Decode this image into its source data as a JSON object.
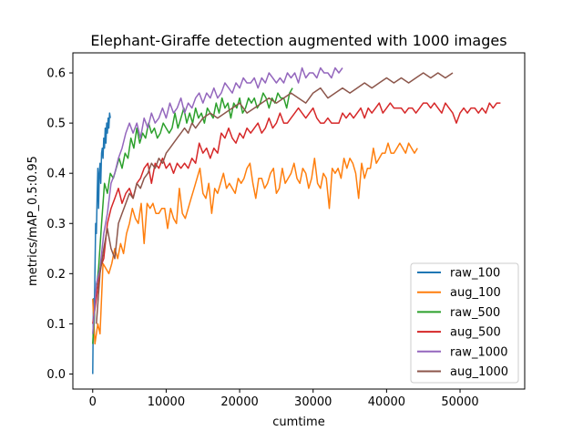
{
  "chart_data": {
    "type": "line",
    "title": "Elephant-Giraffe detection augmented with 1000 images",
    "xlabel": "cumtime",
    "ylabel": "metrics/mAP_0.5:0.95",
    "xlim": [
      -2700,
      58800
    ],
    "ylim": [
      -0.03,
      0.64
    ],
    "xticks": [
      0,
      10000,
      20000,
      30000,
      40000,
      50000
    ],
    "xtick_labels": [
      "0",
      "10000",
      "20000",
      "30000",
      "40000",
      "50000"
    ],
    "yticks": [
      0.0,
      0.1,
      0.2,
      0.3,
      0.4,
      0.5,
      0.6
    ],
    "ytick_labels": [
      "0.0",
      "0.1",
      "0.2",
      "0.3",
      "0.4",
      "0.5",
      "0.6"
    ],
    "grid": false,
    "legend_position": "lower-right",
    "series": [
      {
        "name": "raw_100",
        "color": "#1f77b4",
        "x": [
          0,
          100,
          200,
          300,
          400,
          500,
          600,
          700,
          800,
          900,
          1000,
          1100,
          1200,
          1300,
          1400,
          1500,
          1600,
          1700,
          1800,
          1900,
          2000,
          2100,
          2200,
          2300,
          2400
        ],
        "y": [
          0.0,
          0.15,
          0.1,
          0.2,
          0.3,
          0.28,
          0.35,
          0.41,
          0.33,
          0.4,
          0.42,
          0.38,
          0.44,
          0.45,
          0.43,
          0.47,
          0.45,
          0.49,
          0.46,
          0.5,
          0.48,
          0.51,
          0.49,
          0.52,
          0.51
        ]
      },
      {
        "name": "aug_100",
        "color": "#ff7f0e",
        "x": [
          0,
          300,
          700,
          1000,
          1400,
          1800,
          2200,
          2600,
          3000,
          3400,
          3800,
          4200,
          4600,
          5000,
          5400,
          5800,
          6200,
          6600,
          7000,
          7400,
          7800,
          8200,
          8600,
          9000,
          9400,
          9800,
          10200,
          10600,
          11000,
          11400,
          11800,
          12200,
          12600,
          13000,
          13400,
          13800,
          14200,
          14600,
          15000,
          15400,
          15800,
          16200,
          16600,
          17000,
          17400,
          17800,
          18200,
          18600,
          19000,
          19400,
          19800,
          20200,
          20600,
          21000,
          21400,
          21800,
          22200,
          22600,
          23000,
          23400,
          23800,
          24200,
          24600,
          25000,
          25400,
          25800,
          26200,
          26600,
          27000,
          27400,
          27800,
          28200,
          28600,
          29000,
          29400,
          29800,
          30200,
          30600,
          31000,
          31400,
          31800,
          32200,
          32600,
          33000,
          33400,
          33800,
          34200,
          34600,
          35000,
          35400,
          35800,
          36200,
          36600,
          37000,
          37400,
          37800,
          38200,
          38600,
          39000,
          39400,
          39800,
          40200,
          40600,
          41000,
          41400,
          41800,
          42200,
          42600,
          43000,
          43400,
          43800,
          44200
        ],
        "y": [
          0.15,
          0.06,
          0.1,
          0.08,
          0.22,
          0.21,
          0.2,
          0.22,
          0.25,
          0.23,
          0.26,
          0.24,
          0.28,
          0.3,
          0.33,
          0.31,
          0.3,
          0.34,
          0.26,
          0.34,
          0.33,
          0.34,
          0.32,
          0.32,
          0.33,
          0.33,
          0.29,
          0.33,
          0.31,
          0.3,
          0.37,
          0.32,
          0.31,
          0.33,
          0.35,
          0.37,
          0.39,
          0.41,
          0.36,
          0.35,
          0.38,
          0.32,
          0.37,
          0.36,
          0.38,
          0.4,
          0.37,
          0.38,
          0.37,
          0.36,
          0.39,
          0.38,
          0.39,
          0.41,
          0.42,
          0.38,
          0.35,
          0.39,
          0.39,
          0.37,
          0.38,
          0.4,
          0.41,
          0.36,
          0.37,
          0.41,
          0.38,
          0.39,
          0.4,
          0.42,
          0.39,
          0.38,
          0.41,
          0.4,
          0.37,
          0.39,
          0.43,
          0.38,
          0.37,
          0.4,
          0.39,
          0.33,
          0.41,
          0.4,
          0.41,
          0.39,
          0.43,
          0.41,
          0.43,
          0.42,
          0.4,
          0.35,
          0.42,
          0.39,
          0.41,
          0.41,
          0.45,
          0.42,
          0.43,
          0.44,
          0.44,
          0.46,
          0.44,
          0.44,
          0.45,
          0.46,
          0.45,
          0.44,
          0.46,
          0.45,
          0.44,
          0.45
        ]
      },
      {
        "name": "raw_500",
        "color": "#2ca02c",
        "x": [
          0,
          400,
          800,
          1200,
          1600,
          2000,
          2400,
          2800,
          3200,
          3600,
          4000,
          4400,
          4800,
          5200,
          5600,
          6000,
          6400,
          6800,
          7200,
          7600,
          8000,
          8400,
          8800,
          9200,
          9600,
          10000,
          10400,
          10800,
          11200,
          11600,
          12000,
          12400,
          12800,
          13200,
          13600,
          14000,
          14400,
          14800,
          15200,
          15600,
          16000,
          16400,
          16800,
          17200,
          17600,
          18000,
          18400,
          18800,
          19200,
          19600,
          20000,
          20400,
          20800,
          21200,
          21600,
          22000,
          22400,
          22800,
          23200,
          23600,
          24000,
          24400,
          24800,
          25200,
          25600,
          26000,
          26400,
          26800,
          27200
        ],
        "y": [
          0.06,
          0.16,
          0.21,
          0.3,
          0.38,
          0.36,
          0.4,
          0.39,
          0.41,
          0.43,
          0.41,
          0.44,
          0.43,
          0.47,
          0.45,
          0.49,
          0.46,
          0.48,
          0.47,
          0.5,
          0.48,
          0.49,
          0.47,
          0.48,
          0.5,
          0.49,
          0.48,
          0.49,
          0.52,
          0.49,
          0.51,
          0.53,
          0.5,
          0.52,
          0.5,
          0.53,
          0.51,
          0.52,
          0.5,
          0.53,
          0.52,
          0.51,
          0.54,
          0.52,
          0.55,
          0.53,
          0.54,
          0.51,
          0.54,
          0.53,
          0.55,
          0.52,
          0.53,
          0.55,
          0.54,
          0.55,
          0.53,
          0.54,
          0.56,
          0.55,
          0.53,
          0.55,
          0.54,
          0.56,
          0.55,
          0.55,
          0.53,
          0.56,
          0.57
        ]
      },
      {
        "name": "aug_500",
        "color": "#d62728",
        "x": [
          0,
          500,
          1000,
          1500,
          2000,
          2500,
          3000,
          3500,
          4000,
          4500,
          5000,
          5500,
          6000,
          6500,
          7000,
          7500,
          8000,
          8500,
          9000,
          9500,
          10000,
          10500,
          11000,
          11500,
          12000,
          12500,
          13000,
          13500,
          14000,
          14500,
          15000,
          15500,
          16000,
          16500,
          17000,
          17500,
          18000,
          18500,
          19000,
          19500,
          20000,
          20500,
          21000,
          21500,
          22000,
          22500,
          23000,
          23500,
          24000,
          24500,
          25000,
          25500,
          26000,
          26500,
          27000,
          27500,
          28000,
          28500,
          29000,
          29500,
          30000,
          30500,
          31000,
          31500,
          32000,
          32500,
          33000,
          33500,
          34000,
          34500,
          35000,
          35500,
          36000,
          36500,
          37000,
          37500,
          38000,
          38500,
          39000,
          39500,
          40000,
          40500,
          41000,
          41500,
          42000,
          42500,
          43000,
          43500,
          44000,
          44500,
          45000,
          45500,
          46000,
          46500,
          47000,
          47500,
          48000,
          48500,
          49000,
          49500,
          50000,
          50500,
          51000,
          51500,
          52000,
          52500,
          53000,
          53500,
          54000,
          54500,
          55000,
          55500
        ],
        "y": [
          0.1,
          0.15,
          0.21,
          0.23,
          0.3,
          0.33,
          0.35,
          0.37,
          0.34,
          0.36,
          0.37,
          0.35,
          0.38,
          0.39,
          0.41,
          0.42,
          0.38,
          0.42,
          0.41,
          0.43,
          0.41,
          0.42,
          0.4,
          0.42,
          0.41,
          0.42,
          0.41,
          0.43,
          0.42,
          0.46,
          0.44,
          0.45,
          0.43,
          0.45,
          0.44,
          0.48,
          0.47,
          0.49,
          0.47,
          0.46,
          0.48,
          0.47,
          0.49,
          0.48,
          0.49,
          0.5,
          0.48,
          0.49,
          0.51,
          0.49,
          0.5,
          0.52,
          0.5,
          0.5,
          0.51,
          0.52,
          0.53,
          0.52,
          0.51,
          0.52,
          0.53,
          0.51,
          0.5,
          0.5,
          0.51,
          0.5,
          0.5,
          0.5,
          0.52,
          0.51,
          0.52,
          0.51,
          0.52,
          0.53,
          0.51,
          0.53,
          0.52,
          0.53,
          0.54,
          0.52,
          0.53,
          0.54,
          0.53,
          0.53,
          0.53,
          0.52,
          0.53,
          0.53,
          0.52,
          0.53,
          0.54,
          0.54,
          0.53,
          0.54,
          0.53,
          0.52,
          0.54,
          0.53,
          0.52,
          0.5,
          0.52,
          0.53,
          0.52,
          0.53,
          0.53,
          0.52,
          0.53,
          0.52,
          0.54,
          0.53,
          0.54,
          0.54
        ]
      },
      {
        "name": "raw_1000",
        "color": "#9467bd",
        "x": [
          0,
          500,
          1000,
          1500,
          2000,
          2500,
          3000,
          3500,
          4000,
          4500,
          5000,
          5500,
          6000,
          6500,
          7000,
          7500,
          8000,
          8500,
          9000,
          9500,
          10000,
          10500,
          11000,
          11500,
          12000,
          12500,
          13000,
          13500,
          14000,
          14500,
          15000,
          15500,
          16000,
          16500,
          17000,
          17500,
          18000,
          18500,
          19000,
          19500,
          20000,
          20500,
          21000,
          21500,
          22000,
          22500,
          23000,
          23500,
          24000,
          24500,
          25000,
          25500,
          26000,
          26500,
          27000,
          27500,
          28000,
          28500,
          29000,
          29500,
          30000,
          30500,
          31000,
          31500,
          32000,
          32500,
          33000,
          33500,
          34000
        ],
        "y": [
          0.08,
          0.18,
          0.21,
          0.28,
          0.32,
          0.38,
          0.4,
          0.43,
          0.45,
          0.48,
          0.5,
          0.48,
          0.5,
          0.47,
          0.51,
          0.49,
          0.52,
          0.5,
          0.51,
          0.53,
          0.51,
          0.54,
          0.52,
          0.53,
          0.55,
          0.52,
          0.54,
          0.53,
          0.55,
          0.56,
          0.54,
          0.56,
          0.55,
          0.57,
          0.55,
          0.56,
          0.58,
          0.57,
          0.56,
          0.58,
          0.57,
          0.59,
          0.58,
          0.58,
          0.59,
          0.57,
          0.59,
          0.58,
          0.6,
          0.59,
          0.58,
          0.59,
          0.58,
          0.6,
          0.59,
          0.6,
          0.58,
          0.61,
          0.59,
          0.6,
          0.6,
          0.59,
          0.61,
          0.6,
          0.6,
          0.59,
          0.61,
          0.6,
          0.61
        ]
      },
      {
        "name": "aug_1000",
        "color": "#8c564b",
        "x": [
          500,
          1000,
          1500,
          2000,
          2500,
          3000,
          3500,
          4000,
          4500,
          5000,
          5500,
          6000,
          6500,
          7000,
          7500,
          8000,
          8500,
          9000,
          9500,
          10000,
          10500,
          11000,
          11500,
          12000,
          12500,
          13000,
          13500,
          14000,
          14500,
          15000,
          16000,
          17000,
          18000,
          19000,
          20000,
          21000,
          22000,
          23000,
          24000,
          25000,
          26000,
          27000,
          28000,
          29000,
          30000,
          31000,
          32000,
          33000,
          34000,
          35000,
          36000,
          37000,
          38000,
          39000,
          40000,
          41000,
          42000,
          43000,
          44000,
          45000,
          46000,
          47000,
          48000,
          49000
        ],
        "y": [
          0.1,
          0.2,
          0.25,
          0.29,
          0.25,
          0.23,
          0.3,
          0.32,
          0.34,
          0.36,
          0.35,
          0.38,
          0.37,
          0.39,
          0.4,
          0.42,
          0.41,
          0.43,
          0.42,
          0.44,
          0.45,
          0.46,
          0.47,
          0.48,
          0.49,
          0.48,
          0.5,
          0.49,
          0.5,
          0.51,
          0.52,
          0.51,
          0.52,
          0.53,
          0.54,
          0.52,
          0.53,
          0.54,
          0.55,
          0.54,
          0.55,
          0.56,
          0.55,
          0.54,
          0.56,
          0.57,
          0.55,
          0.56,
          0.57,
          0.56,
          0.57,
          0.58,
          0.57,
          0.58,
          0.59,
          0.58,
          0.59,
          0.58,
          0.59,
          0.6,
          0.59,
          0.6,
          0.59,
          0.6
        ]
      }
    ]
  }
}
